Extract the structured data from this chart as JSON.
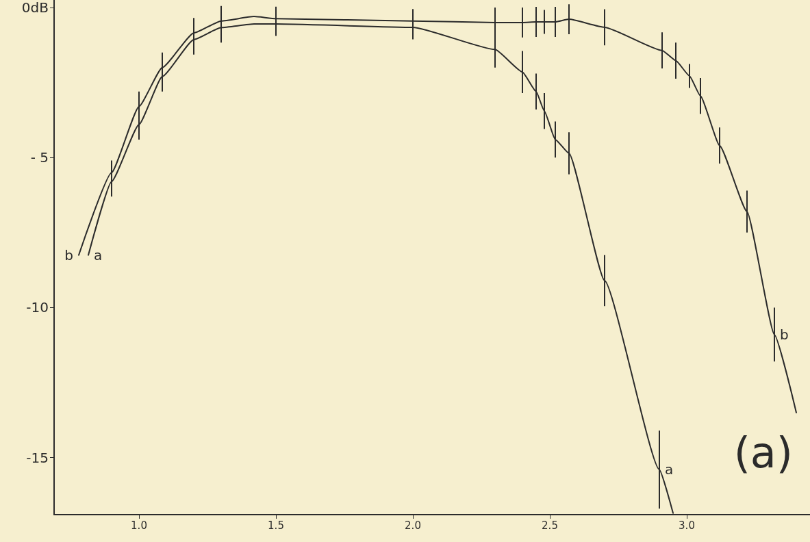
{
  "chart_data": {
    "type": "line",
    "xlim": [
      0.69,
      3.45
    ],
    "ylim": [
      -16.9,
      0.25
    ],
    "xticks": [
      {
        "value": 1,
        "label": "1.0"
      },
      {
        "value": 1.5,
        "label": "1.5"
      },
      {
        "value": 2,
        "label": "2.0"
      },
      {
        "value": 2.5,
        "label": "2.5"
      },
      {
        "value": 3,
        "label": "3.0"
      }
    ],
    "yticks": [
      {
        "value": 0,
        "label": "0dB"
      },
      {
        "value": -5,
        "label": "- 5"
      },
      -10,
      -15
    ],
    "grid": false,
    "legend": false,
    "marker": "none",
    "line_style": "solid",
    "title": "(a)",
    "series": [
      {
        "name": "b",
        "color": "#2b2b2b",
        "x": [
          0.78,
          0.9,
          1.0,
          1.085,
          1.2,
          1.3,
          1.42,
          1.5,
          2.0,
          2.3,
          2.4,
          2.45,
          2.48,
          2.52,
          2.57,
          2.7,
          2.91,
          2.96,
          3.01,
          3.05,
          3.12,
          3.22,
          3.32,
          3.4
        ],
        "values": [
          -8.25,
          -5.5,
          -3.3,
          -2.0,
          -0.85,
          -0.45,
          -0.3,
          -0.37,
          -0.45,
          -0.5,
          -0.5,
          -0.48,
          -0.48,
          -0.48,
          -0.39,
          -0.66,
          -1.43,
          -1.77,
          -2.28,
          -2.95,
          -4.6,
          -6.8,
          -10.9,
          -13.5
        ],
        "errors": [
          null,
          0.4,
          0.5,
          0.5,
          0.5,
          0.5,
          null,
          0.4,
          0.4,
          0.5,
          0.5,
          0.5,
          0.4,
          0.5,
          0.5,
          0.6,
          0.6,
          0.6,
          0.4,
          0.6,
          0.6,
          0.7,
          0.9,
          null
        ]
      },
      {
        "name": "a",
        "color": "#2b2b2b",
        "x": [
          0.815,
          0.9,
          1.0,
          1.085,
          1.2,
          1.3,
          1.42,
          1.5,
          2.0,
          2.3,
          2.4,
          2.45,
          2.48,
          2.52,
          2.57,
          2.7,
          2.9,
          2.95
        ],
        "values": [
          -8.25,
          -5.8,
          -3.9,
          -2.3,
          -1.07,
          -0.67,
          -0.55,
          -0.55,
          -0.66,
          -1.4,
          -2.15,
          -2.8,
          -3.45,
          -4.4,
          -4.86,
          -9.1,
          -15.4,
          -16.85
        ],
        "errors": [
          null,
          0.5,
          0.5,
          0.5,
          0.5,
          0.5,
          null,
          0.4,
          0.4,
          0.6,
          0.7,
          0.6,
          0.6,
          0.6,
          0.7,
          0.85,
          1.3,
          null
        ]
      }
    ]
  }
}
